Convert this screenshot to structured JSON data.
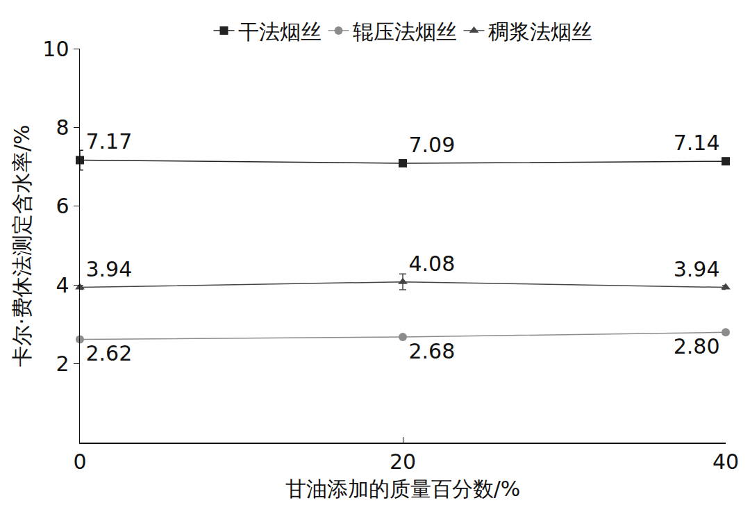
{
  "chart_data": {
    "type": "line",
    "x_label": "甘油添加的质量百分数/%",
    "y_label": "卡尔·费休法测定含水率/%",
    "x": [
      0,
      20,
      40
    ],
    "xlim": [
      0,
      40
    ],
    "xticks": [
      0,
      20,
      40
    ],
    "ylim": [
      0,
      10
    ],
    "yticks": [
      2,
      4,
      6,
      8,
      10
    ],
    "grid": false,
    "legend": "top",
    "data_labels": true,
    "series": [
      {
        "name": "干法烟丝",
        "color": "#222222",
        "marker": "square",
        "values": [
          7.17,
          7.09,
          7.14
        ],
        "value_labels": [
          "7.17",
          "7.09",
          "7.14"
        ],
        "errors": [
          0.25,
          0.05,
          0.05
        ]
      },
      {
        "name": "辊压法烟丝",
        "color": "#8c8c8c",
        "marker": "circle",
        "values": [
          2.62,
          2.68,
          2.8
        ],
        "value_labels": [
          "2.62",
          "2.68",
          "2.80"
        ],
        "errors": [
          0.04,
          0.04,
          0.04
        ]
      },
      {
        "name": "稠浆法烟丝",
        "color": "#444444",
        "marker": "triangle-up",
        "values": [
          3.94,
          4.08,
          3.94
        ],
        "value_labels": [
          "3.94",
          "4.08",
          "3.94"
        ],
        "errors": [
          0.05,
          0.2,
          0.05
        ]
      }
    ]
  }
}
